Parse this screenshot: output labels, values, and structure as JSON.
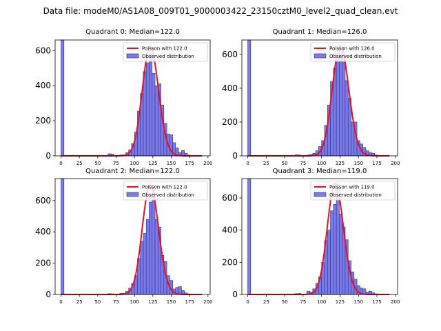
{
  "suptitle": "Data file: modeM0/AS1A08_009T01_9000003422_23150cztM0_level2_quad_clean.evt",
  "colors": {
    "bar_fill": "#7b7be6",
    "bar_edge": "#2b2b9a",
    "fit_line": "#e8101a",
    "axes": "#000000"
  },
  "chart_data": [
    {
      "type": "bar",
      "title": "Quadrant 0: Median=122.0",
      "xlim": [
        -8,
        203
      ],
      "ylim": [
        0,
        660
      ],
      "xticks": [
        0,
        25,
        50,
        75,
        100,
        125,
        150,
        175,
        200
      ],
      "yticks": [
        0,
        200,
        400,
        600
      ],
      "legend": [
        "Poisson with 122.0",
        "Observed distribution"
      ],
      "median": 122.0,
      "fit_scale": 620,
      "bin_width": 4,
      "bins": [
        {
          "x": 0,
          "y": 660
        },
        {
          "x": 64,
          "y": 12
        },
        {
          "x": 68,
          "y": 10
        },
        {
          "x": 80,
          "y": 5
        },
        {
          "x": 84,
          "y": 6
        },
        {
          "x": 88,
          "y": 18
        },
        {
          "x": 92,
          "y": 35
        },
        {
          "x": 96,
          "y": 70
        },
        {
          "x": 100,
          "y": 135
        },
        {
          "x": 104,
          "y": 255
        },
        {
          "x": 108,
          "y": 355
        },
        {
          "x": 112,
          "y": 480
        },
        {
          "x": 116,
          "y": 530
        },
        {
          "x": 120,
          "y": 580
        },
        {
          "x": 124,
          "y": 470
        },
        {
          "x": 128,
          "y": 400
        },
        {
          "x": 132,
          "y": 410
        },
        {
          "x": 136,
          "y": 290
        },
        {
          "x": 140,
          "y": 185
        },
        {
          "x": 144,
          "y": 125
        },
        {
          "x": 148,
          "y": 120
        },
        {
          "x": 152,
          "y": 75
        },
        {
          "x": 156,
          "y": 45
        },
        {
          "x": 160,
          "y": 18
        },
        {
          "x": 164,
          "y": 30
        },
        {
          "x": 168,
          "y": 15
        },
        {
          "x": 172,
          "y": 4
        }
      ]
    },
    {
      "type": "bar",
      "title": "Quadrant 1: Median=126.0",
      "xlim": [
        -8,
        203
      ],
      "ylim": [
        0,
        685
      ],
      "xticks": [
        0,
        25,
        50,
        75,
        100,
        125,
        150,
        175,
        200
      ],
      "yticks": [
        0,
        200,
        400,
        600
      ],
      "legend": [
        "Poisson with 126.0",
        "Observed distribution"
      ],
      "median": 126.0,
      "fit_scale": 650,
      "bin_width": 4,
      "bins": [
        {
          "x": 0,
          "y": 685
        },
        {
          "x": 64,
          "y": 6
        },
        {
          "x": 68,
          "y": 5
        },
        {
          "x": 80,
          "y": 5
        },
        {
          "x": 84,
          "y": 8
        },
        {
          "x": 88,
          "y": 15
        },
        {
          "x": 92,
          "y": 30
        },
        {
          "x": 96,
          "y": 55
        },
        {
          "x": 100,
          "y": 90
        },
        {
          "x": 104,
          "y": 180
        },
        {
          "x": 108,
          "y": 300
        },
        {
          "x": 112,
          "y": 440
        },
        {
          "x": 116,
          "y": 520
        },
        {
          "x": 120,
          "y": 580
        },
        {
          "x": 124,
          "y": 640
        },
        {
          "x": 128,
          "y": 610
        },
        {
          "x": 132,
          "y": 445
        },
        {
          "x": 136,
          "y": 340
        },
        {
          "x": 140,
          "y": 200
        },
        {
          "x": 144,
          "y": 200
        },
        {
          "x": 148,
          "y": 90
        },
        {
          "x": 152,
          "y": 70
        },
        {
          "x": 156,
          "y": 50
        },
        {
          "x": 160,
          "y": 30
        },
        {
          "x": 164,
          "y": 20
        },
        {
          "x": 168,
          "y": 15
        },
        {
          "x": 172,
          "y": 5
        }
      ]
    },
    {
      "type": "bar",
      "title": "Quadrant 2: Median=122.0",
      "xlim": [
        -8,
        203
      ],
      "ylim": [
        0,
        740
      ],
      "xticks": [
        0,
        25,
        50,
        75,
        100,
        125,
        150,
        175,
        200
      ],
      "yticks": [
        0,
        200,
        400,
        600
      ],
      "legend": [
        "Poisson with 122.0",
        "Observed distribution"
      ],
      "median": 122.0,
      "fit_scale": 700,
      "bin_width": 4,
      "bins": [
        {
          "x": 0,
          "y": 740
        },
        {
          "x": 64,
          "y": 5
        },
        {
          "x": 68,
          "y": 4
        },
        {
          "x": 80,
          "y": 8
        },
        {
          "x": 84,
          "y": 8
        },
        {
          "x": 88,
          "y": 20
        },
        {
          "x": 92,
          "y": 40
        },
        {
          "x": 96,
          "y": 70
        },
        {
          "x": 100,
          "y": 120
        },
        {
          "x": 104,
          "y": 230
        },
        {
          "x": 108,
          "y": 340
        },
        {
          "x": 112,
          "y": 390
        },
        {
          "x": 116,
          "y": 480
        },
        {
          "x": 120,
          "y": 590
        },
        {
          "x": 124,
          "y": 670
        },
        {
          "x": 128,
          "y": 480
        },
        {
          "x": 132,
          "y": 430
        },
        {
          "x": 136,
          "y": 250
        },
        {
          "x": 140,
          "y": 210
        },
        {
          "x": 144,
          "y": 120
        },
        {
          "x": 148,
          "y": 90
        },
        {
          "x": 152,
          "y": 35
        },
        {
          "x": 156,
          "y": 45
        },
        {
          "x": 160,
          "y": 50
        },
        {
          "x": 164,
          "y": 25
        },
        {
          "x": 168,
          "y": 10
        },
        {
          "x": 172,
          "y": 4
        }
      ]
    },
    {
      "type": "bar",
      "title": "Quadrant 3: Median=119.0",
      "xlim": [
        -8,
        203
      ],
      "ylim": [
        0,
        720
      ],
      "xticks": [
        0,
        25,
        50,
        75,
        100,
        125,
        150,
        175,
        200
      ],
      "yticks": [
        0,
        200,
        400,
        600
      ],
      "legend": [
        "Poisson with 119.0",
        "Observed distribution"
      ],
      "median": 119.0,
      "fit_scale": 690,
      "bin_width": 4,
      "bins": [
        {
          "x": 0,
          "y": 720
        },
        {
          "x": 64,
          "y": 5
        },
        {
          "x": 68,
          "y": 6
        },
        {
          "x": 80,
          "y": 20
        },
        {
          "x": 84,
          "y": 15
        },
        {
          "x": 88,
          "y": 35
        },
        {
          "x": 92,
          "y": 70
        },
        {
          "x": 96,
          "y": 110
        },
        {
          "x": 100,
          "y": 200
        },
        {
          "x": 104,
          "y": 335
        },
        {
          "x": 108,
          "y": 400
        },
        {
          "x": 112,
          "y": 520
        },
        {
          "x": 116,
          "y": 560
        },
        {
          "x": 120,
          "y": 670
        },
        {
          "x": 124,
          "y": 500
        },
        {
          "x": 128,
          "y": 420
        },
        {
          "x": 132,
          "y": 340
        },
        {
          "x": 136,
          "y": 210
        },
        {
          "x": 140,
          "y": 140
        },
        {
          "x": 144,
          "y": 95
        },
        {
          "x": 148,
          "y": 55
        },
        {
          "x": 152,
          "y": 40
        },
        {
          "x": 156,
          "y": 35
        },
        {
          "x": 160,
          "y": 15
        },
        {
          "x": 164,
          "y": 20
        },
        {
          "x": 168,
          "y": 10
        },
        {
          "x": 172,
          "y": 4
        }
      ]
    }
  ]
}
